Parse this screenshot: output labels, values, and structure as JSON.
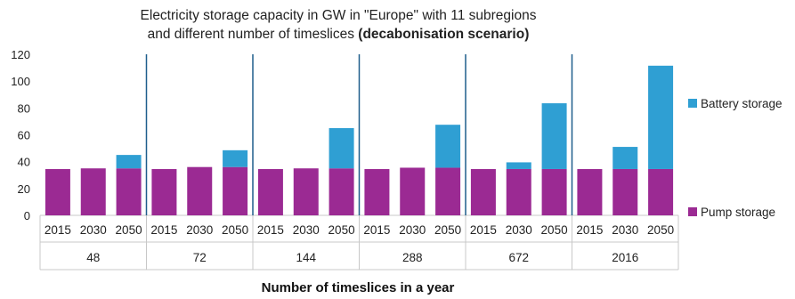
{
  "chart_data": {
    "type": "bar",
    "stacked": true,
    "title": {
      "line1": "Electricity storage capacity  in GW in \"Europe\" with 11 subregions",
      "line2_plain": "and different number of timeslices ",
      "line2_bold": "(decabonisation scenario)"
    },
    "xlabel": "Number of timeslices in a year",
    "ylabel": "",
    "ylim": [
      0,
      120
    ],
    "yticks": [
      "0",
      "20",
      "40",
      "60",
      "80",
      "100",
      "120"
    ],
    "groups": [
      {
        "label": "48",
        "years": [
          "2015",
          "2030",
          "2050"
        ]
      },
      {
        "label": "72",
        "years": [
          "2015",
          "2030",
          "2050"
        ]
      },
      {
        "label": "144",
        "years": [
          "2015",
          "2030",
          "2050"
        ]
      },
      {
        "label": "288",
        "years": [
          "2015",
          "2030",
          "2050"
        ]
      },
      {
        "label": "672",
        "years": [
          "2015",
          "2030",
          "2050"
        ]
      },
      {
        "label": "2016",
        "years": [
          "2015",
          "2030",
          "2050"
        ]
      }
    ],
    "series": [
      {
        "name": "Pump storage",
        "color": "#9b2a93",
        "values": [
          34.5,
          35,
          35,
          34.5,
          36,
          36,
          34.5,
          35,
          35,
          34.5,
          35.5,
          35.5,
          34.5,
          34.5,
          34.5,
          34.5,
          34.5,
          34.5
        ]
      },
      {
        "name": "Battery storage",
        "color": "#2f9fd3",
        "values": [
          0,
          0,
          10,
          0,
          0,
          12.5,
          0,
          0,
          30,
          0,
          0,
          32,
          0,
          5,
          49,
          0,
          16.5,
          77
        ]
      }
    ],
    "legend_position": "right",
    "grid": false,
    "group_separator_color": "#1f5e8c"
  }
}
